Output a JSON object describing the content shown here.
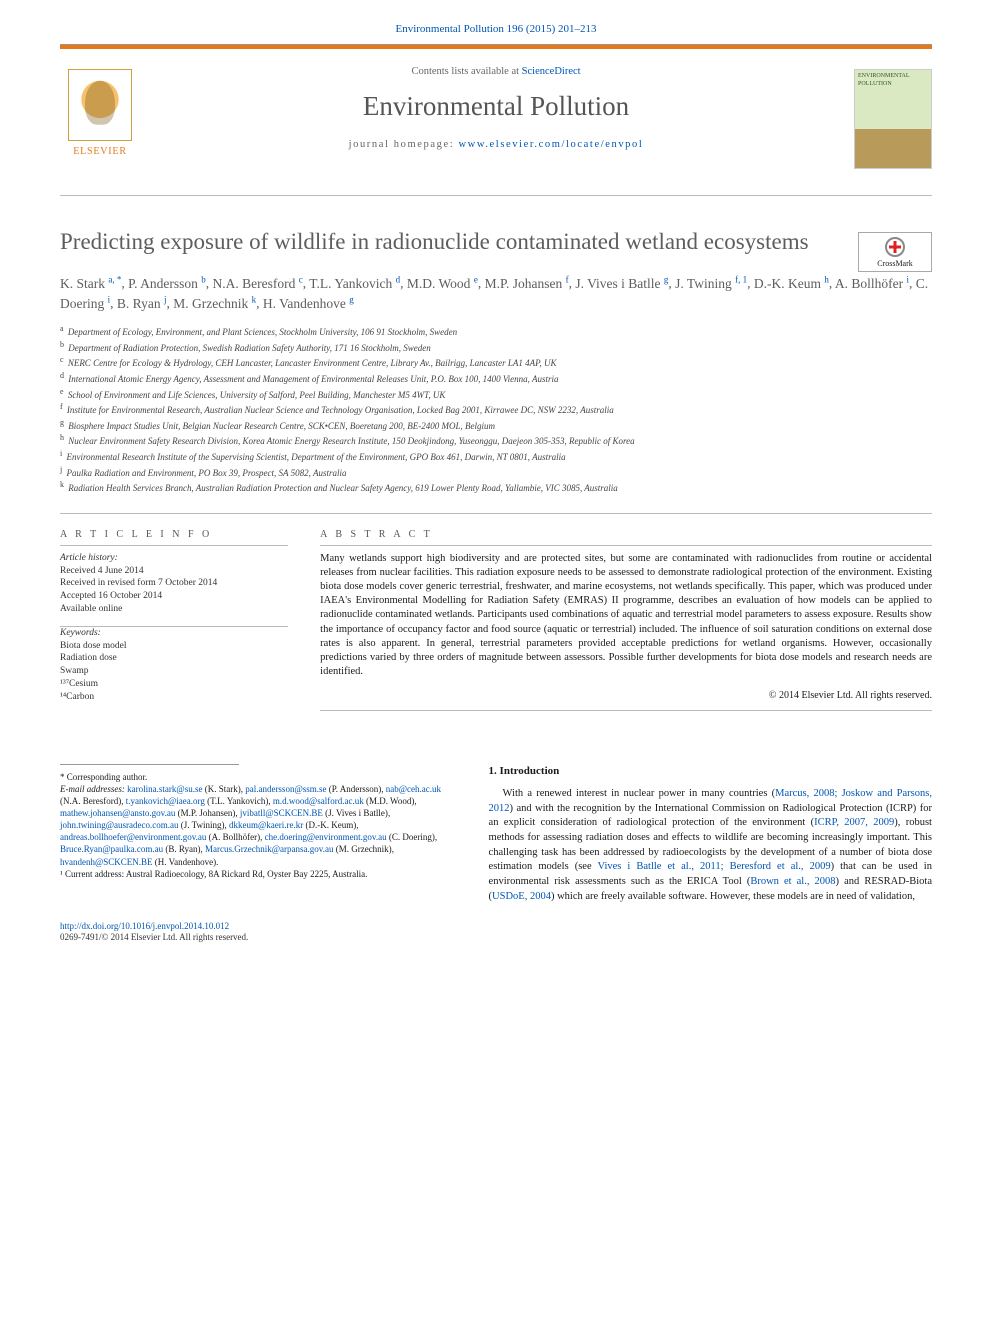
{
  "banner": {
    "citation": "Environmental Pollution 196 (2015) 201–213"
  },
  "masthead": {
    "contents_prefix": "Contents lists available at ",
    "contents_link": "ScienceDirect",
    "journal_title": "Environmental Pollution",
    "homepage_prefix": "journal homepage: ",
    "homepage_url": "www.elsevier.com/locate/envpol",
    "publisher_word": "ELSEVIER",
    "cover_text": "ENVIRONMENTAL POLLUTION"
  },
  "article": {
    "title": "Predicting exposure of wildlife in radionuclide contaminated wetland ecosystems",
    "crossmark_label": "CrossMark"
  },
  "authors": [
    {
      "n": "K. Stark",
      "s": "a, *"
    },
    {
      "n": "P. Andersson",
      "s": "b"
    },
    {
      "n": "N.A. Beresford",
      "s": "c"
    },
    {
      "n": "T.L. Yankovich",
      "s": "d"
    },
    {
      "n": "M.D. Wood",
      "s": "e"
    },
    {
      "n": "M.P. Johansen",
      "s": "f"
    },
    {
      "n": "J. Vives i Batlle",
      "s": "g"
    },
    {
      "n": "J. Twining",
      "s": "f, 1"
    },
    {
      "n": "D.-K. Keum",
      "s": "h"
    },
    {
      "n": "A. Bollhöfer",
      "s": "i"
    },
    {
      "n": "C. Doering",
      "s": "i"
    },
    {
      "n": "B. Ryan",
      "s": "j"
    },
    {
      "n": "M. Grzechnik",
      "s": "k"
    },
    {
      "n": "H. Vandenhove",
      "s": "g"
    }
  ],
  "affiliations": [
    {
      "k": "a",
      "t": "Department of Ecology, Environment, and Plant Sciences, Stockholm University, 106 91 Stockholm, Sweden"
    },
    {
      "k": "b",
      "t": "Department of Radiation Protection, Swedish Radiation Safety Authority, 171 16 Stockholm, Sweden"
    },
    {
      "k": "c",
      "t": "NERC Centre for Ecology & Hydrology, CEH Lancaster, Lancaster Environment Centre, Library Av., Bailrigg, Lancaster LA1 4AP, UK"
    },
    {
      "k": "d",
      "t": "International Atomic Energy Agency, Assessment and Management of Environmental Releases Unit, P.O. Box 100, 1400 Vienna, Austria"
    },
    {
      "k": "e",
      "t": "School of Environment and Life Sciences, University of Salford, Peel Building, Manchester M5 4WT, UK"
    },
    {
      "k": "f",
      "t": "Institute for Environmental Research, Australian Nuclear Science and Technology Organisation, Locked Bag 2001, Kirrawee DC, NSW 2232, Australia"
    },
    {
      "k": "g",
      "t": "Biosphere Impact Studies Unit, Belgian Nuclear Research Centre, SCK•CEN, Boeretang 200, BE-2400 MOL, Belgium"
    },
    {
      "k": "h",
      "t": "Nuclear Environment Safety Research Division, Korea Atomic Energy Research Institute, 150 Deokjindong, Yuseonggu, Daejeon 305-353, Republic of Korea"
    },
    {
      "k": "i",
      "t": "Environmental Research Institute of the Supervising Scientist, Department of the Environment, GPO Box 461, Darwin, NT 0801, Australia"
    },
    {
      "k": "j",
      "t": "Paulka Radiation and Environment, PO Box 39, Prospect, SA 5082, Australia"
    },
    {
      "k": "k",
      "t": "Radiation Health Services Branch, Australian Radiation Protection and Nuclear Safety Agency, 619 Lower Plenty Road, Yallambie, VIC 3085, Australia"
    }
  ],
  "info": {
    "heading": "A R T I C L E   I N F O",
    "history_label": "Article history:",
    "received": "Received 4 June 2014",
    "revised": "Received in revised form 7 October 2014",
    "accepted": "Accepted 16 October 2014",
    "online": "Available online",
    "keywords_label": "Keywords:",
    "keywords": [
      "Biota dose model",
      "Radiation dose",
      "Swamp",
      "¹³⁷Cesium",
      "¹⁴Carbon"
    ]
  },
  "abstract": {
    "heading": "A B S T R A C T",
    "text": "Many wetlands support high biodiversity and are protected sites, but some are contaminated with radionuclides from routine or accidental releases from nuclear facilities. This radiation exposure needs to be assessed to demonstrate radiological protection of the environment. Existing biota dose models cover generic terrestrial, freshwater, and marine ecosystems, not wetlands specifically. This paper, which was produced under IAEA's Environmental Modelling for Radiation Safety (EMRAS) II programme, describes an evaluation of how models can be applied to radionuclide contaminated wetlands. Participants used combinations of aquatic and terrestrial model parameters to assess exposure. Results show the importance of occupancy factor and food source (aquatic or terrestrial) included. The influence of soil saturation conditions on external dose rates is also apparent. In general, terrestrial parameters provided acceptable predictions for wetland organisms. However, occasionally predictions varied by three orders of magnitude between assessors. Possible further developments for biota dose models and research needs are identified.",
    "copyright": "© 2014 Elsevier Ltd. All rights reserved."
  },
  "intro": {
    "heading": "1. Introduction",
    "text_parts": [
      "With a renewed interest in nuclear power in many countries (",
      "Marcus, 2008; Joskow and Parsons, 2012",
      ") and with the recognition by the International Commission on Radiological Protection (ICRP) for an explicit consideration of radiological protection of the environment (",
      "ICRP, 2007, 2009",
      "), robust methods for assessing radiation doses and effects to wildlife are becoming increasingly important. This challenging task has been addressed by radioecologists by the development of a number of biota dose estimation models (see ",
      "Vives i Batlle et al., 2011; Beresford et al., 2009",
      ") that can be used in environmental risk assessments such as the ERICA Tool (",
      "Brown et al., 2008",
      ") and RESRAD-Biota (",
      "USDoE, 2004",
      ") which are freely available software. However, these models are in need of validation,"
    ]
  },
  "footnotes": {
    "corresponding": "* Corresponding author.",
    "email_label": "E-mail addresses:",
    "emails": [
      {
        "e": "karolina.stark@su.se",
        "p": "(K. Stark)"
      },
      {
        "e": "pal.andersson@ssm.se",
        "p": "(P. Andersson)"
      },
      {
        "e": "nab@ceh.ac.uk",
        "p": "(N.A. Beresford)"
      },
      {
        "e": "t.yankovich@iaea.org",
        "p": "(T.L. Yankovich)"
      },
      {
        "e": "m.d.wood@salford.ac.uk",
        "p": "(M.D. Wood)"
      },
      {
        "e": "mathew.johansen@ansto.gov.au",
        "p": "(M.P. Johansen)"
      },
      {
        "e": "jvibatll@SCKCEN.BE",
        "p": "(J. Vives i Batlle)"
      },
      {
        "e": "john.twining@ausradeco.com.au",
        "p": "(J. Twining)"
      },
      {
        "e": "dkkeum@kaeri.re.kr",
        "p": "(D.-K. Keum)"
      },
      {
        "e": "andreas.bollhoefer@environment.gov.au",
        "p": "(A. Bollhöfer)"
      },
      {
        "e": "che.doering@environment.gov.au",
        "p": "(C. Doering)"
      },
      {
        "e": "Bruce.Ryan@paulka.com.au",
        "p": "(B. Ryan)"
      },
      {
        "e": "Marcus.Grzechnik@arpansa.gov.au",
        "p": "(M. Grzechnik)"
      },
      {
        "e": "hvandenh@SCKCEN.BE",
        "p": "(H. Vandenhove)"
      }
    ],
    "current_address": "¹ Current address: Austral Radioecology, 8A Rickard Rd, Oyster Bay 2225, Australia."
  },
  "bottom": {
    "doi": "http://dx.doi.org/10.1016/j.envpol.2014.10.012",
    "issn_line": "0269-7491/© 2014 Elsevier Ltd. All rights reserved."
  }
}
